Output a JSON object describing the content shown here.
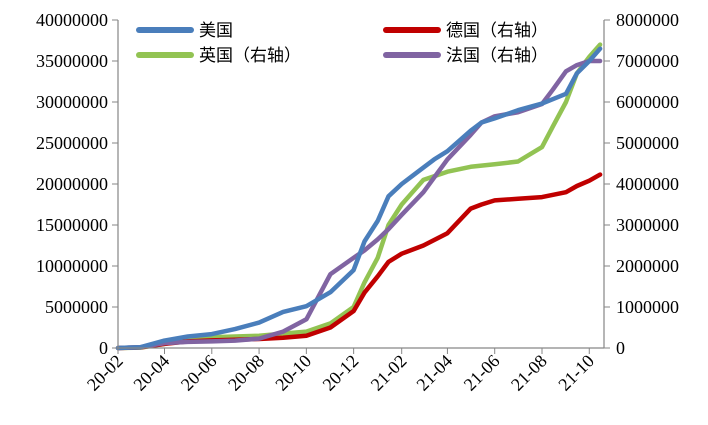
{
  "chart_data": {
    "type": "line",
    "title": "",
    "xlabel": "",
    "ylabel_left": "",
    "ylabel_right": "",
    "x_ticks": [
      "20-02",
      "20-04",
      "20-06",
      "20-08",
      "20-10",
      "20-12",
      "21-02",
      "21-04",
      "21-06",
      "21-08",
      "21-10"
    ],
    "y_left": {
      "range": [
        0,
        40000000
      ],
      "ticks": [
        "0",
        "5000000",
        "10000000",
        "15000000",
        "20000000",
        "25000000",
        "30000000",
        "35000000",
        "40000000"
      ]
    },
    "y_right": {
      "range": [
        0,
        8000000
      ],
      "ticks": [
        "0",
        "1000000",
        "2000000",
        "3000000",
        "4000000",
        "5000000",
        "6000000",
        "7000000",
        "8000000"
      ]
    },
    "grid": false,
    "legend_placement": "top",
    "series": [
      {
        "name": "美国",
        "axis": "left",
        "color": "#4a7ebb",
        "points": [
          [
            "20-02",
            0
          ],
          [
            "20-03",
            100000
          ],
          [
            "20-04",
            900000
          ],
          [
            "20-05",
            1400000
          ],
          [
            "20-06",
            1700000
          ],
          [
            "20-07",
            2300000
          ],
          [
            "20-08",
            3100000
          ],
          [
            "20-09",
            4400000
          ],
          [
            "20-10",
            5100000
          ],
          [
            "20-11",
            6800000
          ],
          [
            "20-12",
            9500000
          ],
          [
            "20-12-15",
            13000000
          ],
          [
            "21-01",
            15500000
          ],
          [
            "21-01-15",
            18500000
          ],
          [
            "21-02",
            20000000
          ],
          [
            "21-02-15",
            21000000
          ],
          [
            "21-03",
            22000000
          ],
          [
            "21-03-15",
            23000000
          ],
          [
            "21-04",
            24000000
          ],
          [
            "21-05",
            26500000
          ],
          [
            "21-05-15",
            27500000
          ],
          [
            "21-06",
            28000000
          ],
          [
            "21-07",
            29000000
          ],
          [
            "21-08",
            29800000
          ],
          [
            "21-09",
            31000000
          ],
          [
            "21-09-15",
            33500000
          ],
          [
            "21-10",
            35000000
          ],
          [
            "21-10-15",
            36500000
          ]
        ]
      },
      {
        "name": "德国（右轴）",
        "axis": "right",
        "color": "#c00000",
        "points": [
          [
            "20-02",
            0
          ],
          [
            "20-03",
            15000
          ],
          [
            "20-04",
            100000
          ],
          [
            "20-05",
            160000
          ],
          [
            "20-06",
            185000
          ],
          [
            "20-07",
            200000
          ],
          [
            "20-08",
            220000
          ],
          [
            "20-09",
            250000
          ],
          [
            "20-10",
            300000
          ],
          [
            "20-11",
            500000
          ],
          [
            "20-12",
            900000
          ],
          [
            "20-12-15",
            1350000
          ],
          [
            "21-01",
            1750000
          ],
          [
            "21-01-15",
            2100000
          ],
          [
            "21-02",
            2300000
          ],
          [
            "21-03",
            2500000
          ],
          [
            "21-04",
            2800000
          ],
          [
            "21-05",
            3400000
          ],
          [
            "21-05-15",
            3500000
          ],
          [
            "21-06",
            3600000
          ],
          [
            "21-07",
            3640000
          ],
          [
            "21-08",
            3680000
          ],
          [
            "21-09",
            3800000
          ],
          [
            "21-09-15",
            3950000
          ],
          [
            "21-10",
            4080000
          ],
          [
            "21-10-15",
            4230000
          ]
        ]
      },
      {
        "name": "英国（右轴）",
        "axis": "right",
        "color": "#92c353",
        "points": [
          [
            "20-02",
            0
          ],
          [
            "20-03",
            10000
          ],
          [
            "20-04",
            100000
          ],
          [
            "20-05",
            200000
          ],
          [
            "20-06",
            260000
          ],
          [
            "20-07",
            280000
          ],
          [
            "20-08",
            300000
          ],
          [
            "20-09",
            350000
          ],
          [
            "20-10",
            400000
          ],
          [
            "20-11",
            600000
          ],
          [
            "20-12",
            1000000
          ],
          [
            "20-12-15",
            1600000
          ],
          [
            "21-01",
            2200000
          ],
          [
            "21-01-15",
            3000000
          ],
          [
            "21-02",
            3500000
          ],
          [
            "21-02-15",
            3800000
          ],
          [
            "21-03",
            4100000
          ],
          [
            "21-04",
            4300000
          ],
          [
            "21-05",
            4420000
          ],
          [
            "21-06",
            4480000
          ],
          [
            "21-07",
            4550000
          ],
          [
            "21-08",
            4900000
          ],
          [
            "21-08-15",
            5400000
          ],
          [
            "21-09",
            6000000
          ],
          [
            "21-09-15",
            6700000
          ],
          [
            "21-10",
            7100000
          ],
          [
            "21-10-15",
            7400000
          ]
        ]
      },
      {
        "name": "法国（右轴）",
        "axis": "right",
        "color": "#8064a2",
        "points": [
          [
            "20-02",
            0
          ],
          [
            "20-03",
            20000
          ],
          [
            "20-04",
            120000
          ],
          [
            "20-05",
            150000
          ],
          [
            "20-06",
            160000
          ],
          [
            "20-07",
            180000
          ],
          [
            "20-08",
            230000
          ],
          [
            "20-09",
            400000
          ],
          [
            "20-10",
            700000
          ],
          [
            "20-11",
            1800000
          ],
          [
            "20-12",
            2200000
          ],
          [
            "20-12-15",
            2380000
          ],
          [
            "21-01",
            2650000
          ],
          [
            "21-01-15",
            2900000
          ],
          [
            "21-02",
            3250000
          ],
          [
            "21-03",
            3800000
          ],
          [
            "21-04",
            4600000
          ],
          [
            "21-05",
            5200000
          ],
          [
            "21-05-15",
            5500000
          ],
          [
            "21-06",
            5650000
          ],
          [
            "21-07",
            5750000
          ],
          [
            "21-08",
            5950000
          ],
          [
            "21-08-15",
            6300000
          ],
          [
            "21-09",
            6750000
          ],
          [
            "21-09-15",
            6900000
          ],
          [
            "21-10",
            7000000
          ],
          [
            "21-10-15",
            7000000
          ]
        ]
      }
    ]
  }
}
